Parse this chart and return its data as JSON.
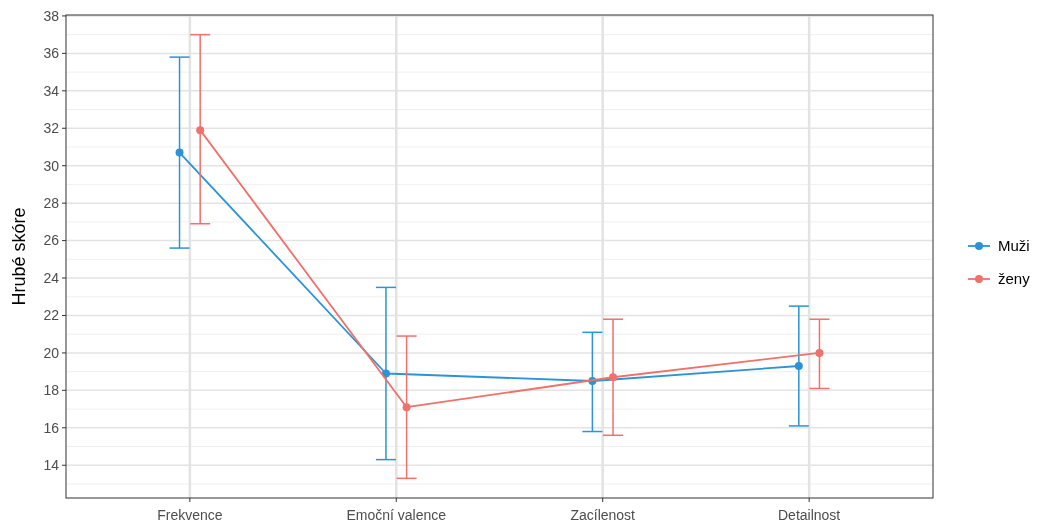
{
  "chart_data": {
    "type": "line",
    "ylabel": "Hrubé skóre",
    "categories": [
      "Frekvence",
      "Emoční valence",
      "Zacílenost",
      "Detailnost"
    ],
    "series": [
      {
        "name": "Muži",
        "color": "#2b93d6",
        "values": [
          30.7,
          18.9,
          18.5,
          19.3
        ],
        "errors": [
          [
            25.6,
            35.8
          ],
          [
            14.3,
            23.5
          ],
          [
            15.8,
            21.1
          ],
          [
            16.1,
            22.5
          ]
        ]
      },
      {
        "name": "ženy",
        "color": "#f0706a",
        "values": [
          31.9,
          17.1,
          18.7,
          20.0
        ],
        "errors": [
          [
            26.9,
            37.0
          ],
          [
            13.3,
            20.9
          ],
          [
            15.6,
            21.8
          ],
          [
            18.1,
            21.8
          ]
        ]
      }
    ],
    "ylim": [
      12.25,
      38.05
    ],
    "yticks": [
      14,
      16,
      18,
      20,
      22,
      24,
      26,
      28,
      30,
      32,
      34,
      36,
      38
    ],
    "grid": true,
    "legend": "right",
    "marker": "circle",
    "line_style": "solid"
  }
}
